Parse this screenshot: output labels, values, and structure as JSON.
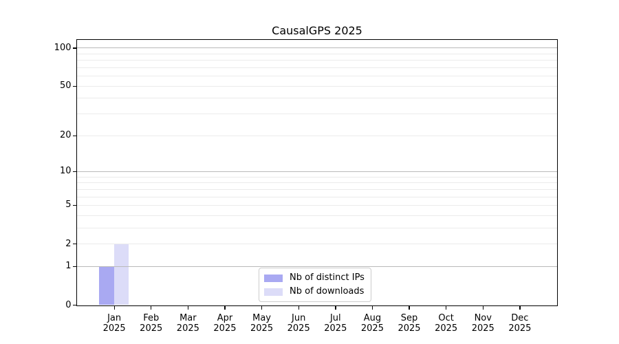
{
  "chart_data": {
    "type": "bar",
    "title": "CausalGPS 2025",
    "year": "2025",
    "months": [
      "Jan",
      "Feb",
      "Mar",
      "Apr",
      "May",
      "Jun",
      "Jul",
      "Aug",
      "Sep",
      "Oct",
      "Nov",
      "Dec"
    ],
    "categories": [
      "Jan 2025",
      "Feb 2025",
      "Mar 2025",
      "Apr 2025",
      "May 2025",
      "Jun 2025",
      "Jul 2025",
      "Aug 2025",
      "Sep 2025",
      "Oct 2025",
      "Nov 2025",
      "Dec 2025"
    ],
    "series": [
      {
        "name": "Nb of distinct IPs",
        "color": "#a9a9f2",
        "values": [
          1,
          0,
          0,
          0,
          0,
          0,
          0,
          0,
          0,
          0,
          0,
          0
        ]
      },
      {
        "name": "Nb of downloads",
        "color": "#dcdcf8",
        "values": [
          2,
          0,
          0,
          0,
          0,
          0,
          0,
          0,
          0,
          0,
          0,
          0
        ]
      }
    ],
    "xlabel": "",
    "ylabel": "",
    "y_axis": {
      "scale": "log1p",
      "tick_values": [
        0,
        1,
        2,
        5,
        10,
        20,
        50,
        100
      ],
      "major_grid_values": [
        1,
        10,
        100
      ],
      "minor_grid_values": [
        2,
        3,
        4,
        5,
        6,
        7,
        8,
        9,
        20,
        30,
        40,
        50,
        60,
        70,
        80,
        90
      ],
      "range": [
        0,
        115
      ]
    },
    "grid": "on",
    "legend_position": "lower center"
  },
  "legend": {
    "items": [
      {
        "label": "Nb of distinct IPs",
        "color": "#a9a9f2"
      },
      {
        "label": "Nb of downloads",
        "color": "#dcdcf8"
      }
    ]
  },
  "colors": {
    "background": "#ffffff",
    "axis": "#000000",
    "major_grid": "#b9b9b9",
    "minor_grid": "#ebebeb",
    "legend_border": "#cccccc",
    "bar_distinct_ips": "#a9a9f2",
    "bar_downloads": "#dcdcf8"
  }
}
